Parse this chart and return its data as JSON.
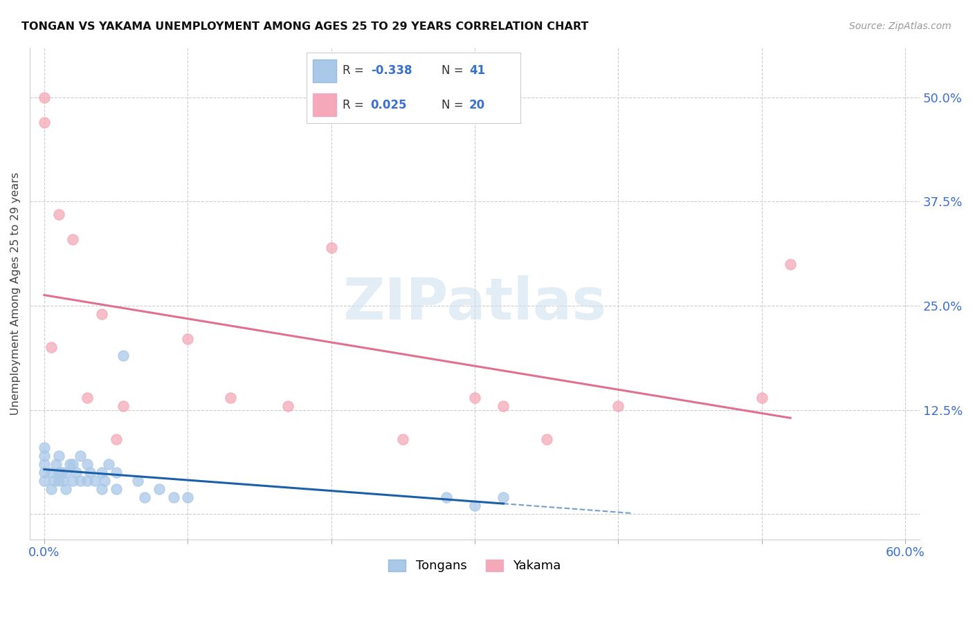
{
  "title": "TONGAN VS YAKAMA UNEMPLOYMENT AMONG AGES 25 TO 29 YEARS CORRELATION CHART",
  "source": "Source: ZipAtlas.com",
  "ylabel": "Unemployment Among Ages 25 to 29 years",
  "xlim": [
    -0.01,
    0.61
  ],
  "ylim": [
    -0.03,
    0.56
  ],
  "x_ticks": [
    0.0,
    0.1,
    0.2,
    0.3,
    0.4,
    0.5,
    0.6
  ],
  "x_tick_labels": [
    "0.0%",
    "",
    "",
    "",
    "",
    "",
    "60.0%"
  ],
  "y_ticks": [
    0.0,
    0.125,
    0.25,
    0.375,
    0.5
  ],
  "y_tick_labels_right": [
    "",
    "12.5%",
    "25.0%",
    "37.5%",
    "50.0%"
  ],
  "background_color": "#ffffff",
  "tongans_color": "#aac8e8",
  "yakama_color": "#f4a8b8",
  "tongans_line_color": "#1a5fa8",
  "yakama_line_color": "#e07090",
  "tongans_R": -0.338,
  "tongans_N": 41,
  "yakama_R": 0.025,
  "yakama_N": 20,
  "watermark_text": "ZIPatlas",
  "tongans_x": [
    0.0,
    0.0,
    0.0,
    0.0,
    0.0,
    0.005,
    0.005,
    0.007,
    0.008,
    0.01,
    0.01,
    0.01,
    0.012,
    0.013,
    0.015,
    0.015,
    0.018,
    0.02,
    0.02,
    0.022,
    0.025,
    0.025,
    0.03,
    0.03,
    0.032,
    0.035,
    0.04,
    0.04,
    0.042,
    0.045,
    0.05,
    0.05,
    0.055,
    0.065,
    0.07,
    0.08,
    0.09,
    0.1,
    0.28,
    0.3,
    0.32
  ],
  "tongans_y": [
    0.04,
    0.05,
    0.06,
    0.07,
    0.08,
    0.03,
    0.05,
    0.04,
    0.06,
    0.04,
    0.05,
    0.07,
    0.05,
    0.04,
    0.03,
    0.05,
    0.06,
    0.04,
    0.06,
    0.05,
    0.04,
    0.07,
    0.04,
    0.06,
    0.05,
    0.04,
    0.03,
    0.05,
    0.04,
    0.06,
    0.03,
    0.05,
    0.19,
    0.04,
    0.02,
    0.03,
    0.02,
    0.02,
    0.02,
    0.01,
    0.02
  ],
  "yakama_x": [
    0.0,
    0.0,
    0.005,
    0.01,
    0.02,
    0.03,
    0.04,
    0.05,
    0.055,
    0.1,
    0.13,
    0.17,
    0.2,
    0.25,
    0.3,
    0.32,
    0.35,
    0.4,
    0.5,
    0.52
  ],
  "yakama_y": [
    0.47,
    0.5,
    0.2,
    0.36,
    0.33,
    0.14,
    0.24,
    0.09,
    0.13,
    0.21,
    0.14,
    0.13,
    0.32,
    0.09,
    0.14,
    0.13,
    0.09,
    0.13,
    0.14,
    0.3
  ]
}
